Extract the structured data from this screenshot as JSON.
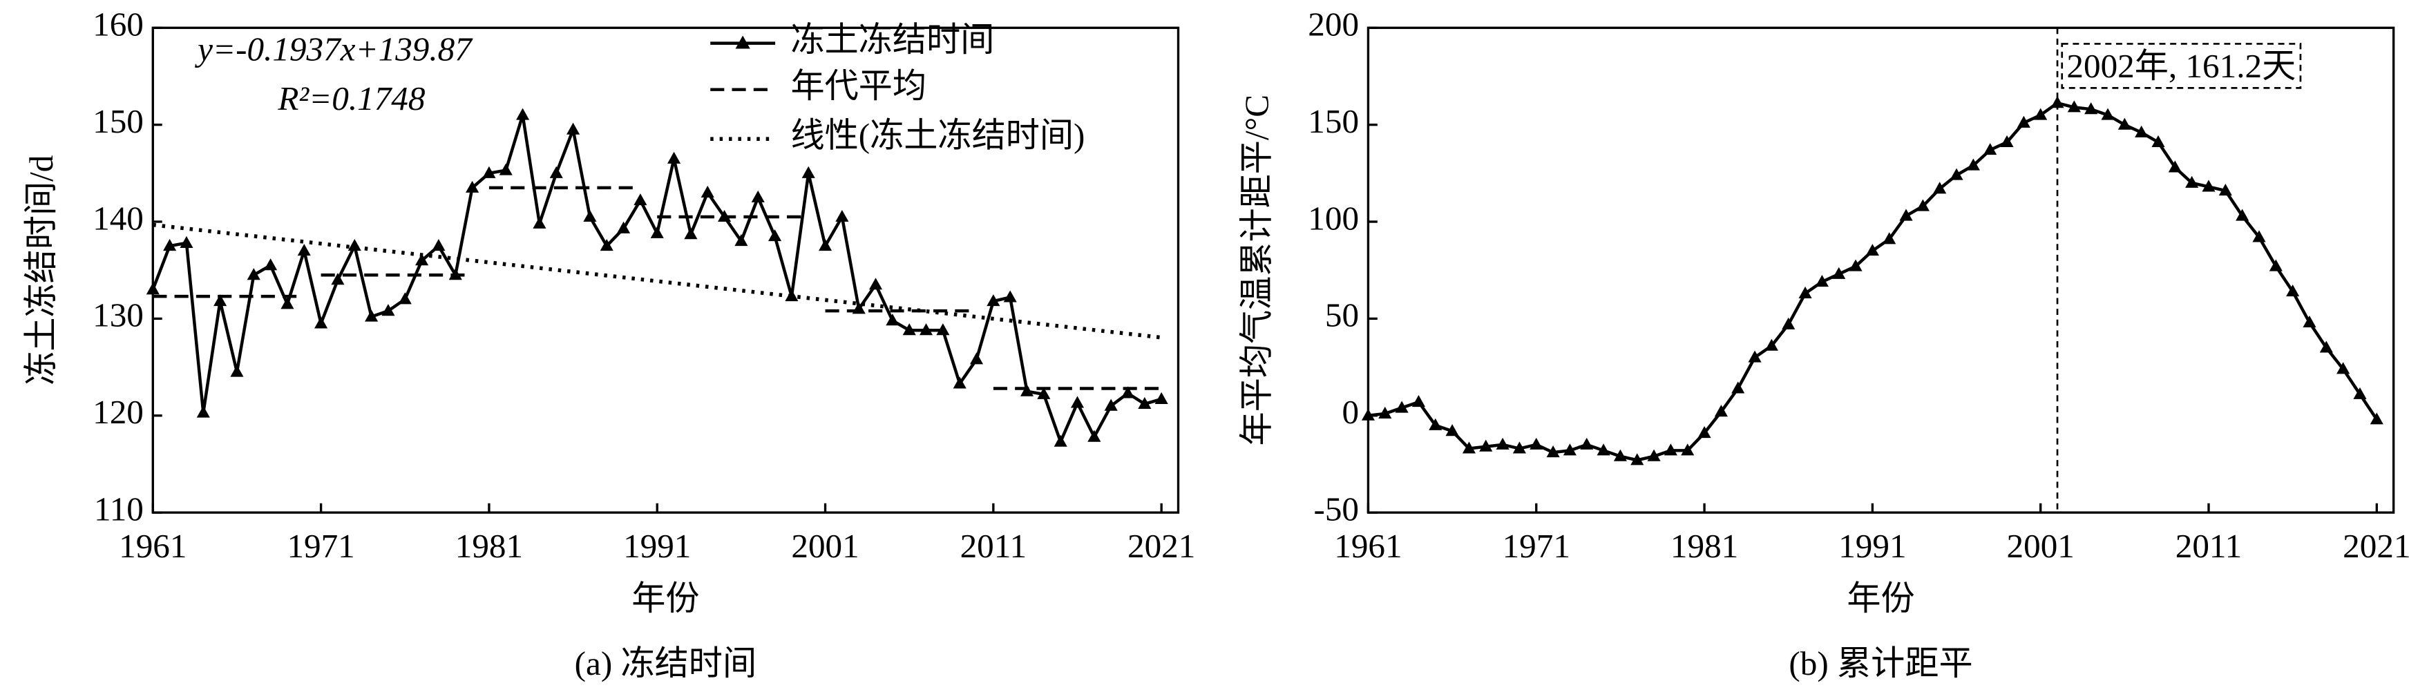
{
  "chart_data": [
    {
      "type": "line",
      "caption": "(a) 冻结时间",
      "xlabel": "年份",
      "ylabel": "冻土冻结时间/d",
      "x": [
        1961,
        1962,
        1963,
        1964,
        1965,
        1966,
        1967,
        1968,
        1969,
        1970,
        1971,
        1972,
        1973,
        1974,
        1975,
        1976,
        1977,
        1978,
        1979,
        1980,
        1981,
        1982,
        1983,
        1984,
        1985,
        1986,
        1987,
        1988,
        1989,
        1990,
        1991,
        1992,
        1993,
        1994,
        1995,
        1996,
        1997,
        1998,
        1999,
        2000,
        2001,
        2002,
        2003,
        2004,
        2005,
        2006,
        2007,
        2008,
        2009,
        2010,
        2011,
        2012,
        2013,
        2014,
        2015,
        2016,
        2017,
        2018,
        2019,
        2020,
        2021
      ],
      "series": [
        {
          "name": "冻土冻结时间",
          "color": "#000000",
          "values": [
            133,
            137.5,
            137.8,
            120.3,
            131.8,
            124.5,
            134.5,
            135.5,
            131.5,
            137,
            129.5,
            134,
            137.5,
            130.2,
            130.8,
            132,
            136,
            137.5,
            134.5,
            143.5,
            145,
            145.3,
            151,
            139.8,
            145,
            149.5,
            140.5,
            137.5,
            139.3,
            142.2,
            138.8,
            146.5,
            138.7,
            143,
            140.5,
            138,
            142.5,
            138.5,
            132.3,
            145,
            137.5,
            140.5,
            131,
            133.5,
            129.8,
            128.8,
            128.8,
            128.8,
            123.3,
            125.8,
            131.8,
            132.2,
            122.5,
            122.2,
            117.3,
            121.3,
            117.8,
            121,
            122.3,
            121.2,
            121.7
          ]
        }
      ],
      "decade_means": {
        "name": "年代平均",
        "segments": [
          {
            "start": 1961,
            "end": 1970,
            "value": 132.3
          },
          {
            "start": 1971,
            "end": 1980,
            "value": 134.5
          },
          {
            "start": 1981,
            "end": 1990,
            "value": 143.5
          },
          {
            "start": 1991,
            "end": 2000,
            "value": 140.5
          },
          {
            "start": 2001,
            "end": 2010,
            "value": 130.8
          },
          {
            "start": 2011,
            "end": 2021,
            "value": 122.8
          }
        ]
      },
      "trend": {
        "name": "线性(冻土冻结时间)",
        "slope": -0.1937,
        "intercept": 139.87,
        "equation": "y=-0.1937x+139.87",
        "r2": "R²=0.1748"
      },
      "xlim": [
        1961,
        2022
      ],
      "xticks": [
        1961,
        1971,
        1981,
        1991,
        2001,
        2011,
        2021
      ],
      "ylim": [
        110,
        160
      ],
      "yticks": [
        110,
        120,
        130,
        140,
        150,
        160
      ]
    },
    {
      "type": "line",
      "caption": "(b) 累计距平",
      "xlabel": "年份",
      "ylabel": "年平均气温累计距平/°C",
      "x": [
        1961,
        1962,
        1963,
        1964,
        1965,
        1966,
        1967,
        1968,
        1969,
        1970,
        1971,
        1972,
        1973,
        1974,
        1975,
        1976,
        1977,
        1978,
        1979,
        1980,
        1981,
        1982,
        1983,
        1984,
        1985,
        1986,
        1987,
        1988,
        1989,
        1990,
        1991,
        1992,
        1993,
        1994,
        1995,
        1996,
        1997,
        1998,
        1999,
        2000,
        2001,
        2002,
        2003,
        2004,
        2005,
        2006,
        2007,
        2008,
        2009,
        2010,
        2011,
        2012,
        2013,
        2014,
        2015,
        2016,
        2017,
        2018,
        2019,
        2020,
        2021
      ],
      "series": [
        {
          "color": "#000000",
          "values": [
            0,
            1,
            4,
            7,
            -5,
            -8,
            -17,
            -16,
            -15,
            -17,
            -15,
            -19,
            -18,
            -15,
            -18,
            -21,
            -23,
            -21,
            -18,
            -18,
            -9,
            2,
            14,
            30,
            36,
            47,
            63,
            69,
            73,
            77,
            85,
            91,
            103,
            108,
            117,
            124,
            129,
            137,
            141,
            151,
            155,
            161.2,
            159,
            158,
            155,
            150,
            146,
            141,
            128,
            120,
            118,
            116,
            103,
            92,
            77,
            64,
            48,
            35,
            24,
            11,
            -2
          ]
        }
      ],
      "annotation": {
        "text": "2002年, 161.2天",
        "x": 2002
      },
      "xlim": [
        1961,
        2022
      ],
      "xticks": [
        1961,
        1971,
        1981,
        1991,
        2001,
        2011,
        2021
      ],
      "ylim": [
        -50,
        200
      ],
      "yticks": [
        -50,
        0,
        50,
        100,
        150,
        200
      ]
    }
  ]
}
